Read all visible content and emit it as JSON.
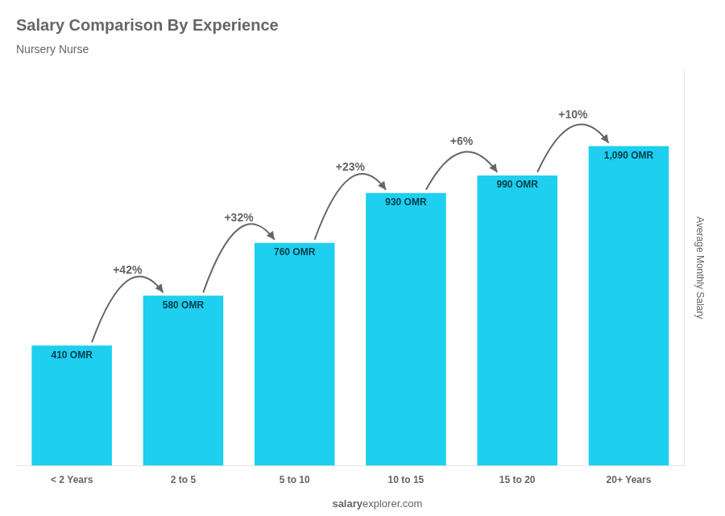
{
  "chart_data": {
    "type": "bar",
    "title": "Salary Comparison By Experience",
    "subtitle": "Nursery Nurse",
    "categories": [
      "< 2 Years",
      "2 to 5",
      "5 to 10",
      "10 to 15",
      "15 to 20",
      "20+ Years"
    ],
    "values": [
      410,
      580,
      760,
      930,
      990,
      1090
    ],
    "value_labels": [
      "410 OMR",
      "580 OMR",
      "760 OMR",
      "930 OMR",
      "990 OMR",
      "1,090 OMR"
    ],
    "data_labels": true,
    "color": "#1ECFEF",
    "annotations": [
      "+42%",
      "+32%",
      "+23%",
      "+6%",
      "+10%"
    ],
    "ylabel": "Average Monthly Salary",
    "footer": [
      "salary",
      "explorer.com"
    ],
    "ylim": [
      0,
      1350
    ],
    "grid": false,
    "tick_labels": "x"
  }
}
